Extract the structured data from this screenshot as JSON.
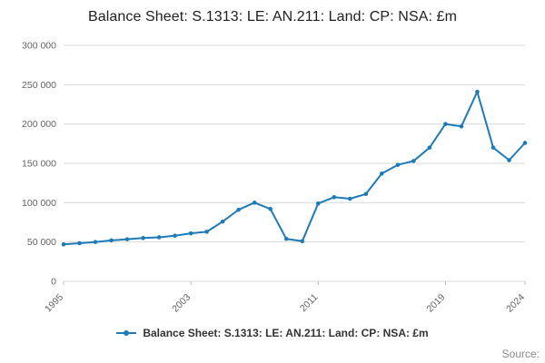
{
  "title": "Balance Sheet: S.1313: LE: AN.211: Land: CP: NSA: £m",
  "source_label": "Source:",
  "legend": {
    "label": "Balance Sheet: S.1313: LE: AN.211: Land: CP: NSA: £m"
  },
  "colors": {
    "line": "#1e7bb8",
    "grid": "#d9d9d9",
    "tick_text": "#636363",
    "legend_text": "#333333",
    "source_text": "#8a8a8a"
  },
  "chart_data": {
    "type": "line",
    "title": "Balance Sheet: S.1313: LE: AN.211: Land: CP: NSA: £m",
    "xlabel": "",
    "ylabel": "",
    "x": [
      1995,
      1996,
      1997,
      1998,
      1999,
      2000,
      2001,
      2002,
      2003,
      2004,
      2005,
      2006,
      2007,
      2008,
      2009,
      2010,
      2011,
      2012,
      2013,
      2014,
      2015,
      2016,
      2017,
      2018,
      2019,
      2020,
      2021,
      2022,
      2023,
      2024
    ],
    "series": [
      {
        "name": "Balance Sheet: S.1313: LE: AN.211: Land: CP: NSA: £m",
        "values": [
          47000,
          48500,
          50000,
          52000,
          53500,
          55000,
          56000,
          58000,
          61000,
          63000,
          76000,
          91000,
          100000,
          92000,
          54000,
          51000,
          99000,
          107000,
          105000,
          111000,
          137000,
          148000,
          153000,
          170000,
          200000,
          197000,
          241000,
          170000,
          154000,
          176000
        ]
      }
    ],
    "ylim": [
      0,
      300000
    ],
    "yticks": [
      0,
      50000,
      100000,
      150000,
      200000,
      250000,
      300000
    ],
    "ytick_labels": [
      "0",
      "50 000",
      "100 000",
      "150 000",
      "200 000",
      "250 000",
      "300 000"
    ],
    "xticks": [
      1995,
      2003,
      2011,
      2019,
      2024
    ],
    "xtick_labels": [
      "1995",
      "2003",
      "2011",
      "2019",
      "2024"
    ],
    "grid": "horizontal",
    "legend_position": "bottom",
    "marker": "circle"
  }
}
